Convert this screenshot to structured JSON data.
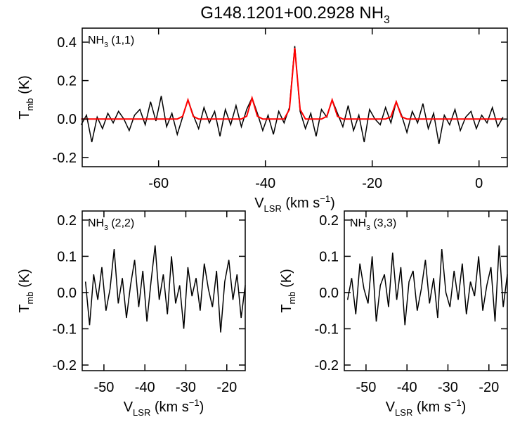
{
  "chart_data": [
    {
      "type": "line",
      "title": [
        {
          "text": "G148.1201+00.2928 NH"
        },
        {
          "text": "3",
          "sub": true
        }
      ],
      "annotation": [
        {
          "text": "NH"
        },
        {
          "text": "3",
          "sub": true
        },
        {
          "text": " (1,1)"
        }
      ],
      "xlabel": [
        {
          "text": "V"
        },
        {
          "text": "LSR",
          "sub": true
        },
        {
          "text": " (km s"
        },
        {
          "text": "−1",
          "sup": true
        },
        {
          "text": ")"
        }
      ],
      "ylabel": [
        {
          "text": "T"
        },
        {
          "text": "mb",
          "sub": true
        },
        {
          "text": " (K)"
        }
      ],
      "x": [
        -74.5,
        -73.5,
        -72.5,
        -71.5,
        -70.5,
        -69.5,
        -68.5,
        -67.5,
        -66.5,
        -65.5,
        -64.5,
        -63.5,
        -62.5,
        -61.5,
        -60.5,
        -59.5,
        -58.5,
        -57.5,
        -56.5,
        -55.5,
        -54.5,
        -53.5,
        -52.5,
        -51.5,
        -50.5,
        -49.5,
        -48.5,
        -47.5,
        -46.5,
        -45.5,
        -44.5,
        -43.5,
        -42.5,
        -41.5,
        -40.5,
        -39.5,
        -38.5,
        -37.5,
        -36.5,
        -35.5,
        -34.5,
        -33.5,
        -32.5,
        -31.5,
        -30.5,
        -29.5,
        -28.5,
        -27.5,
        -26.5,
        -25.5,
        -24.5,
        -23.5,
        -22.5,
        -21.5,
        -20.5,
        -19.5,
        -18.5,
        -17.5,
        -16.5,
        -15.5,
        -14.5,
        -13.5,
        -12.5,
        -11.5,
        -10.5,
        -9.5,
        -8.5,
        -7.5,
        -6.5,
        -5.5,
        -4.5,
        -3.5,
        -2.5,
        -1.5,
        -0.5,
        0.5,
        1.5,
        2.5,
        3.5,
        4.5
      ],
      "series": [
        {
          "color": "#000000",
          "values": [
            -0.03,
            0.02,
            -0.12,
            0.01,
            -0.05,
            0.03,
            -0.02,
            0.04,
            0.0,
            -0.06,
            0.02,
            0.05,
            -0.03,
            0.09,
            -0.01,
            0.12,
            -0.04,
            0.03,
            -0.08,
            0.01,
            0.1,
            0.02,
            -0.05,
            0.06,
            -0.02,
            0.04,
            -0.09,
            0.05,
            -0.03,
            0.07,
            -0.04,
            0.05,
            0.11,
            0.03,
            -0.06,
            0.02,
            -0.08,
            0.04,
            -0.02,
            0.06,
            0.38,
            0.04,
            -0.05,
            0.03,
            -0.09,
            0.05,
            0.01,
            0.1,
            0.03,
            -0.04,
            0.07,
            -0.06,
            0.02,
            -0.12,
            0.05,
            0.0,
            -0.03,
            0.06,
            -0.02,
            0.09,
            0.02,
            -0.07,
            0.04,
            -0.02,
            0.08,
            -0.05,
            0.03,
            -0.13,
            0.02,
            -0.03,
            0.05,
            -0.06,
            0.01,
            0.04,
            -0.05,
            0.02,
            -0.02,
            0.06,
            -0.04,
            0.01
          ]
        },
        {
          "color": "#ff0000",
          "values": [
            0,
            0,
            0,
            0,
            0,
            0,
            0,
            0,
            0,
            0,
            0,
            0,
            0,
            0,
            0,
            0,
            0,
            0,
            0,
            0.014,
            0.1,
            0.014,
            0,
            0,
            0,
            0,
            0,
            0,
            0,
            0,
            0,
            0.015,
            0.11,
            0.015,
            0,
            0,
            0,
            0,
            0,
            0.05,
            0.37,
            0.05,
            0,
            0,
            0,
            0,
            0.014,
            0.1,
            0.014,
            0,
            0,
            0,
            0,
            0,
            0,
            0,
            0,
            0,
            0.012,
            0.09,
            0.012,
            0,
            0,
            0,
            0,
            0,
            0,
            0,
            0,
            0,
            0,
            0,
            0,
            0,
            0,
            0,
            0,
            0,
            0,
            0
          ]
        }
      ],
      "xlim": [
        -74.3,
        5.3
      ],
      "ylim": [
        -0.248,
        0.473
      ],
      "xticks": [
        -60,
        -40,
        -20,
        0
      ],
      "yticks": [
        0.4,
        0.2,
        {
          "value": 0,
          "label": "0.0"
        },
        -0.2
      ]
    },
    {
      "type": "line",
      "annotation": [
        {
          "text": "NH"
        },
        {
          "text": "3",
          "sub": true
        },
        {
          "text": " (2,2)"
        }
      ],
      "xlabel": [
        {
          "text": "V"
        },
        {
          "text": "LSR",
          "sub": true
        },
        {
          "text": " (km s"
        },
        {
          "text": "−1",
          "sup": true
        },
        {
          "text": ")"
        }
      ],
      "ylabel": [
        {
          "text": "T"
        },
        {
          "text": "mb",
          "sub": true
        },
        {
          "text": " (K)"
        }
      ],
      "x": [
        -54.5,
        -53.5,
        -52.5,
        -51.5,
        -50.5,
        -49.5,
        -48.5,
        -47.5,
        -46.5,
        -45.5,
        -44.5,
        -43.5,
        -42.5,
        -41.5,
        -40.5,
        -39.5,
        -38.5,
        -37.5,
        -36.5,
        -35.5,
        -34.5,
        -33.5,
        -32.5,
        -31.5,
        -30.5,
        -29.5,
        -28.5,
        -27.5,
        -26.5,
        -25.5,
        -24.5,
        -23.5,
        -22.5,
        -21.5,
        -20.5,
        -19.5,
        -18.5,
        -17.5,
        -16.5,
        -15.5
      ],
      "series": [
        {
          "color": "#000000",
          "values": [
            0.03,
            -0.09,
            0.05,
            -0.02,
            0.07,
            -0.05,
            0.01,
            0.12,
            -0.03,
            0.04,
            -0.07,
            0.02,
            0.09,
            -0.04,
            0.06,
            -0.08,
            0.03,
            0.13,
            -0.02,
            0.05,
            -0.06,
            0.1,
            -0.03,
            0.02,
            -0.1,
            0.07,
            -0.01,
            0.04,
            -0.05,
            0.08,
            0.01,
            -0.04,
            0.06,
            -0.11,
            0.03,
            0.09,
            -0.02,
            0.05,
            -0.07,
            0.02
          ]
        }
      ],
      "xlim": [
        -55.3,
        -15.5
      ],
      "ylim": [
        -0.2155,
        0.225
      ],
      "xticks": [
        -50,
        -40,
        -30,
        -20
      ],
      "yticks": [
        0.2,
        0.1,
        {
          "value": 0,
          "label": "0.0"
        },
        -0.1,
        -0.2
      ]
    },
    {
      "type": "line",
      "annotation": [
        {
          "text": "NH"
        },
        {
          "text": "3",
          "sub": true
        },
        {
          "text": " (3,3)"
        }
      ],
      "xlabel": [
        {
          "text": "V"
        },
        {
          "text": "LSR",
          "sub": true
        },
        {
          "text": " (km s"
        },
        {
          "text": "−1",
          "sup": true
        },
        {
          "text": ")"
        }
      ],
      "ylabel": [
        {
          "text": "T"
        },
        {
          "text": "mb",
          "sub": true
        },
        {
          "text": " (K)"
        }
      ],
      "x": [
        -54.5,
        -53.5,
        -52.5,
        -51.5,
        -50.5,
        -49.5,
        -48.5,
        -47.5,
        -46.5,
        -45.5,
        -44.5,
        -43.5,
        -42.5,
        -41.5,
        -40.5,
        -39.5,
        -38.5,
        -37.5,
        -36.5,
        -35.5,
        -34.5,
        -33.5,
        -32.5,
        -31.5,
        -30.5,
        -29.5,
        -28.5,
        -27.5,
        -26.5,
        -25.5,
        -24.5,
        -23.5,
        -22.5,
        -21.5,
        -20.5,
        -19.5,
        -18.5,
        -17.5,
        -16.5,
        -15.5
      ],
      "series": [
        {
          "color": "#000000",
          "values": [
            -0.02,
            0.04,
            -0.06,
            0.08,
            0.01,
            -0.03,
            0.1,
            -0.08,
            0.02,
            0.05,
            -0.04,
            0.11,
            -0.02,
            0.07,
            -0.09,
            0.03,
            0.06,
            -0.05,
            0.01,
            0.09,
            -0.03,
            0.04,
            -0.07,
            0.12,
            0.0,
            -0.04,
            0.06,
            -0.02,
            0.08,
            -0.06,
            0.03,
            -0.01,
            0.1,
            -0.05,
            0.02,
            0.07,
            -0.08,
            0.13,
            -0.04,
            0.05
          ]
        }
      ],
      "xlim": [
        -55.3,
        -15.5
      ],
      "ylim": [
        -0.2155,
        0.225
      ],
      "xticks": [
        -50,
        -40,
        -30,
        -20
      ],
      "yticks": [
        0.2,
        0.1,
        {
          "value": 0,
          "label": "0.0"
        },
        -0.1,
        -0.2
      ]
    }
  ]
}
